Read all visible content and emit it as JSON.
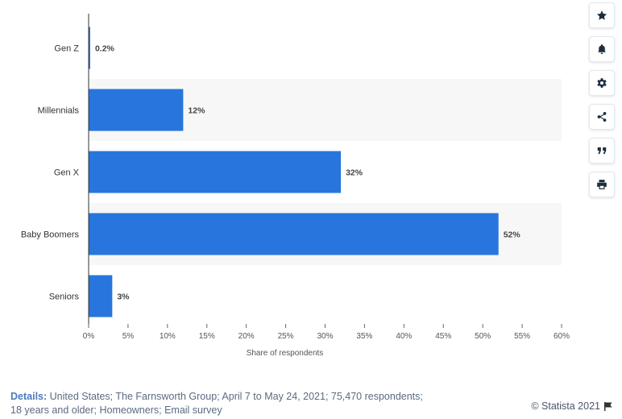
{
  "chart_data": {
    "type": "bar",
    "orientation": "horizontal",
    "categories": [
      "Gen Z",
      "Millennials",
      "Gen X",
      "Baby Boomers",
      "Seniors"
    ],
    "values": [
      0.2,
      12,
      32,
      52,
      3
    ],
    "value_labels": [
      "0.2%",
      "12%",
      "32%",
      "52%",
      "3%"
    ],
    "xlabel": "Share of respondents",
    "ylabel": "",
    "xlim": [
      0,
      60
    ],
    "ticks": [
      0,
      5,
      10,
      15,
      20,
      25,
      30,
      35,
      40,
      45,
      50,
      55,
      60
    ],
    "tick_labels": [
      "0%",
      "5%",
      "10%",
      "15%",
      "20%",
      "25%",
      "30%",
      "35%",
      "40%",
      "45%",
      "50%",
      "55%",
      "60%"
    ],
    "grid": false,
    "colors": {
      "bar": "#2876dd",
      "band": "#f7f7f7",
      "axis": "#333333"
    }
  },
  "toolbar": {
    "buttons": [
      {
        "name": "star-icon"
      },
      {
        "name": "bell-icon"
      },
      {
        "name": "gear-icon"
      },
      {
        "name": "share-icon"
      },
      {
        "name": "quote-icon"
      },
      {
        "name": "print-icon"
      }
    ]
  },
  "footer": {
    "details_label": "Details:",
    "details_line1": "United States; The Farnsworth Group; April 7 to May 24, 2021; 75,470 respondents;",
    "details_line2": "18 years and older; Homeowners; Email survey",
    "copyright": "© Statista 2021"
  }
}
